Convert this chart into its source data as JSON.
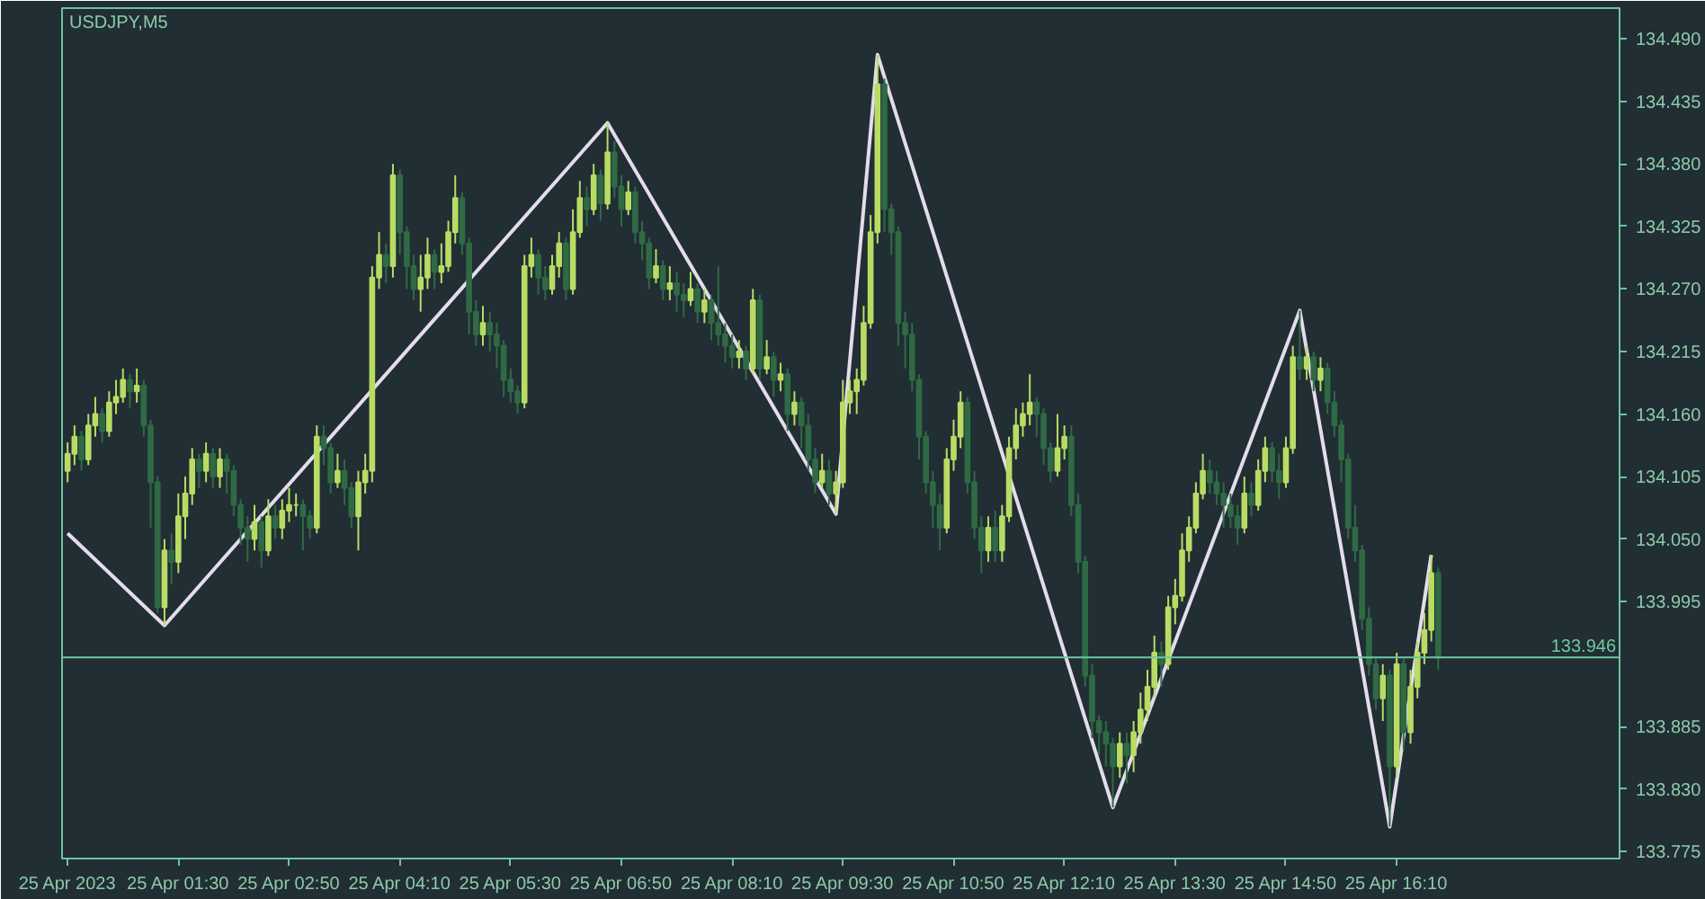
{
  "chart_data": {
    "type": "candlestick",
    "title": "USDJPY,M5",
    "x": [
      "2023-04-25T00:10",
      "2023-04-25T00:15",
      "2023-04-25T00:20",
      "2023-04-25T00:25",
      "2023-04-25T00:30",
      "2023-04-25T00:35",
      "2023-04-25T00:40",
      "2023-04-25T00:45",
      "2023-04-25T00:50",
      "2023-04-25T00:55",
      "2023-04-25T01:00",
      "2023-04-25T01:05",
      "2023-04-25T01:10",
      "2023-04-25T01:15",
      "2023-04-25T01:20",
      "2023-04-25T01:25",
      "2023-04-25T01:30",
      "2023-04-25T01:35",
      "2023-04-25T01:40",
      "2023-04-25T01:45",
      "2023-04-25T01:50",
      "2023-04-25T01:55",
      "2023-04-25T02:00",
      "2023-04-25T02:05",
      "2023-04-25T02:10",
      "2023-04-25T02:15",
      "2023-04-25T02:20",
      "2023-04-25T02:25",
      "2023-04-25T02:30",
      "2023-04-25T02:35",
      "2023-04-25T02:40",
      "2023-04-25T02:45",
      "2023-04-25T02:50",
      "2023-04-25T02:55",
      "2023-04-25T03:00",
      "2023-04-25T03:05",
      "2023-04-25T03:10",
      "2023-04-25T03:15",
      "2023-04-25T03:20",
      "2023-04-25T03:25",
      "2023-04-25T03:30",
      "2023-04-25T03:35",
      "2023-04-25T03:40",
      "2023-04-25T03:45",
      "2023-04-25T03:50",
      "2023-04-25T03:55",
      "2023-04-25T04:00",
      "2023-04-25T04:05",
      "2023-04-25T04:10",
      "2023-04-25T04:15",
      "2023-04-25T04:20",
      "2023-04-25T04:25",
      "2023-04-25T04:30",
      "2023-04-25T04:35",
      "2023-04-25T04:40",
      "2023-04-25T04:45",
      "2023-04-25T04:50",
      "2023-04-25T04:55",
      "2023-04-25T05:00",
      "2023-04-25T05:05",
      "2023-04-25T05:10",
      "2023-04-25T05:15",
      "2023-04-25T05:20",
      "2023-04-25T05:25",
      "2023-04-25T05:30",
      "2023-04-25T05:35",
      "2023-04-25T05:40",
      "2023-04-25T05:45",
      "2023-04-25T05:50",
      "2023-04-25T05:55",
      "2023-04-25T06:00",
      "2023-04-25T06:05",
      "2023-04-25T06:10",
      "2023-04-25T06:15",
      "2023-04-25T06:20",
      "2023-04-25T06:25",
      "2023-04-25T06:30",
      "2023-04-25T06:35",
      "2023-04-25T06:40",
      "2023-04-25T06:45",
      "2023-04-25T06:50",
      "2023-04-25T06:55",
      "2023-04-25T07:00",
      "2023-04-25T07:05",
      "2023-04-25T07:10",
      "2023-04-25T07:15",
      "2023-04-25T07:20",
      "2023-04-25T07:25",
      "2023-04-25T07:30",
      "2023-04-25T07:35",
      "2023-04-25T07:40",
      "2023-04-25T07:45",
      "2023-04-25T07:50",
      "2023-04-25T07:55",
      "2023-04-25T08:00",
      "2023-04-25T08:05",
      "2023-04-25T08:10",
      "2023-04-25T08:15",
      "2023-04-25T08:20",
      "2023-04-25T08:25",
      "2023-04-25T08:30",
      "2023-04-25T08:35",
      "2023-04-25T08:40",
      "2023-04-25T08:45",
      "2023-04-25T08:50",
      "2023-04-25T08:55",
      "2023-04-25T09:00",
      "2023-04-25T09:05",
      "2023-04-25T09:10",
      "2023-04-25T09:15",
      "2023-04-25T09:20",
      "2023-04-25T09:25",
      "2023-04-25T09:30",
      "2023-04-25T09:35",
      "2023-04-25T09:40",
      "2023-04-25T09:45",
      "2023-04-25T09:50",
      "2023-04-25T09:55",
      "2023-04-25T10:00",
      "2023-04-25T10:05",
      "2023-04-25T10:10",
      "2023-04-25T10:15",
      "2023-04-25T10:20",
      "2023-04-25T10:25",
      "2023-04-25T10:30",
      "2023-04-25T10:35",
      "2023-04-25T10:40",
      "2023-04-25T10:45",
      "2023-04-25T10:50",
      "2023-04-25T10:55",
      "2023-04-25T11:00",
      "2023-04-25T11:05",
      "2023-04-25T11:10",
      "2023-04-25T11:15",
      "2023-04-25T11:20",
      "2023-04-25T11:25",
      "2023-04-25T11:30",
      "2023-04-25T11:35",
      "2023-04-25T11:40",
      "2023-04-25T11:45",
      "2023-04-25T11:50",
      "2023-04-25T11:55",
      "2023-04-25T12:00",
      "2023-04-25T12:05",
      "2023-04-25T12:10",
      "2023-04-25T12:15",
      "2023-04-25T12:20",
      "2023-04-25T12:25",
      "2023-04-25T12:30",
      "2023-04-25T12:35",
      "2023-04-25T12:40",
      "2023-04-25T12:45",
      "2023-04-25T12:50",
      "2023-04-25T12:55",
      "2023-04-25T13:00",
      "2023-04-25T13:05",
      "2023-04-25T13:10",
      "2023-04-25T13:15",
      "2023-04-25T13:20",
      "2023-04-25T13:25",
      "2023-04-25T13:30",
      "2023-04-25T13:35",
      "2023-04-25T13:40",
      "2023-04-25T13:45",
      "2023-04-25T13:50",
      "2023-04-25T13:55",
      "2023-04-25T14:00",
      "2023-04-25T14:05",
      "2023-04-25T14:10",
      "2023-04-25T14:15",
      "2023-04-25T14:20",
      "2023-04-25T14:25",
      "2023-04-25T14:30",
      "2023-04-25T14:35",
      "2023-04-25T14:40",
      "2023-04-25T14:45",
      "2023-04-25T14:50",
      "2023-04-25T14:55",
      "2023-04-25T15:00",
      "2023-04-25T15:05",
      "2023-04-25T15:10",
      "2023-04-25T15:15",
      "2023-04-25T15:20",
      "2023-04-25T15:25",
      "2023-04-25T15:30",
      "2023-04-25T15:35",
      "2023-04-25T15:40",
      "2023-04-25T15:45",
      "2023-04-25T15:50",
      "2023-04-25T15:55",
      "2023-04-25T16:00",
      "2023-04-25T16:05",
      "2023-04-25T16:10",
      "2023-04-25T16:15",
      "2023-04-25T16:20",
      "2023-04-25T16:25",
      "2023-04-25T16:30",
      "2023-04-25T16:35",
      "2023-04-25T16:40"
    ],
    "ohlc": [
      [
        134.11,
        134.135,
        134.1,
        134.125
      ],
      [
        134.125,
        134.15,
        134.115,
        134.14
      ],
      [
        134.14,
        134.145,
        134.11,
        134.12
      ],
      [
        134.12,
        134.16,
        134.115,
        134.15
      ],
      [
        134.15,
        134.175,
        134.14,
        134.16
      ],
      [
        134.16,
        134.165,
        134.135,
        134.145
      ],
      [
        134.145,
        134.18,
        134.14,
        134.17
      ],
      [
        134.17,
        134.19,
        134.16,
        134.175
      ],
      [
        134.175,
        134.2,
        134.17,
        134.19
      ],
      [
        134.19,
        134.195,
        134.165,
        134.18
      ],
      [
        134.18,
        134.2,
        134.17,
        134.185
      ],
      [
        134.185,
        134.19,
        134.14,
        134.15
      ],
      [
        134.15,
        134.155,
        134.06,
        134.1
      ],
      [
        134.1,
        134.105,
        133.985,
        133.99
      ],
      [
        133.99,
        134.05,
        133.974,
        134.04
      ],
      [
        134.04,
        134.055,
        134.01,
        134.03
      ],
      [
        134.03,
        134.09,
        134.02,
        134.07
      ],
      [
        134.07,
        134.105,
        134.05,
        134.09
      ],
      [
        134.09,
        134.13,
        134.08,
        134.12
      ],
      [
        134.12,
        134.125,
        134.095,
        134.11
      ],
      [
        134.11,
        134.135,
        134.1,
        134.125
      ],
      [
        134.125,
        134.13,
        134.095,
        134.105
      ],
      [
        134.105,
        134.13,
        134.095,
        134.12
      ],
      [
        134.12,
        134.125,
        134.09,
        134.11
      ],
      [
        134.11,
        134.115,
        134.07,
        134.08
      ],
      [
        134.08,
        134.085,
        134.045,
        134.06
      ],
      [
        134.06,
        134.07,
        134.03,
        134.05
      ],
      [
        134.05,
        134.08,
        134.04,
        134.065
      ],
      [
        134.065,
        134.07,
        134.025,
        134.04
      ],
      [
        134.04,
        134.085,
        134.035,
        134.07
      ],
      [
        134.07,
        134.08,
        134.05,
        134.06
      ],
      [
        134.06,
        134.085,
        134.05,
        134.075
      ],
      [
        134.075,
        134.095,
        134.065,
        134.08
      ],
      [
        134.08,
        134.09,
        134.07,
        134.08
      ],
      [
        134.08,
        134.085,
        134.04,
        134.07
      ],
      [
        134.07,
        134.075,
        134.05,
        134.06
      ],
      [
        134.06,
        134.15,
        134.055,
        134.14
      ],
      [
        134.14,
        134.15,
        134.115,
        134.13
      ],
      [
        134.13,
        134.135,
        134.09,
        134.1
      ],
      [
        134.1,
        134.125,
        134.095,
        134.11
      ],
      [
        134.11,
        134.12,
        134.08,
        134.095
      ],
      [
        134.095,
        134.1,
        134.06,
        134.07
      ],
      [
        134.07,
        134.11,
        134.04,
        134.1
      ],
      [
        134.1,
        134.125,
        134.09,
        134.11
      ],
      [
        134.11,
        134.29,
        134.1,
        134.28
      ],
      [
        134.28,
        134.32,
        134.27,
        134.3
      ],
      [
        134.3,
        134.31,
        134.275,
        134.29
      ],
      [
        134.29,
        134.38,
        134.28,
        134.37
      ],
      [
        134.37,
        134.375,
        134.3,
        134.32
      ],
      [
        134.32,
        134.325,
        134.27,
        134.29
      ],
      [
        134.29,
        134.3,
        134.26,
        134.27
      ],
      [
        134.27,
        134.3,
        134.25,
        134.28
      ],
      [
        134.28,
        134.315,
        134.27,
        134.3
      ],
      [
        134.3,
        134.305,
        134.27,
        134.285
      ],
      [
        134.285,
        134.31,
        134.275,
        134.29
      ],
      [
        134.29,
        134.33,
        134.285,
        134.32
      ],
      [
        134.32,
        134.37,
        134.31,
        134.35
      ],
      [
        134.35,
        134.355,
        134.3,
        134.31
      ],
      [
        134.31,
        134.315,
        134.23,
        134.25
      ],
      [
        134.25,
        134.26,
        134.22,
        134.23
      ],
      [
        134.23,
        134.255,
        134.22,
        134.24
      ],
      [
        134.24,
        134.25,
        134.215,
        134.23
      ],
      [
        134.23,
        134.24,
        134.2,
        134.22
      ],
      [
        134.22,
        134.225,
        134.175,
        134.19
      ],
      [
        134.19,
        134.2,
        134.17,
        134.18
      ],
      [
        134.18,
        134.185,
        134.16,
        134.17
      ],
      [
        134.17,
        134.3,
        134.165,
        134.29
      ],
      [
        134.29,
        134.315,
        134.28,
        134.3
      ],
      [
        134.3,
        134.305,
        134.265,
        134.28
      ],
      [
        134.28,
        134.29,
        134.26,
        134.27
      ],
      [
        134.27,
        134.3,
        134.265,
        134.29
      ],
      [
        134.29,
        134.32,
        134.28,
        134.31
      ],
      [
        134.31,
        134.315,
        134.26,
        134.27
      ],
      [
        134.27,
        134.34,
        134.265,
        134.32
      ],
      [
        134.32,
        134.365,
        134.315,
        134.35
      ],
      [
        134.35,
        134.36,
        134.325,
        134.34
      ],
      [
        134.34,
        134.38,
        134.335,
        134.37
      ],
      [
        134.37,
        134.375,
        134.33,
        134.345
      ],
      [
        134.345,
        134.416,
        134.34,
        134.39
      ],
      [
        134.39,
        134.4,
        134.35,
        134.36
      ],
      [
        134.36,
        134.37,
        134.325,
        134.34
      ],
      [
        134.34,
        134.365,
        134.335,
        134.355
      ],
      [
        134.355,
        134.36,
        134.31,
        134.32
      ],
      [
        134.32,
        134.33,
        134.295,
        134.31
      ],
      [
        134.31,
        134.315,
        134.27,
        134.28
      ],
      [
        134.28,
        134.305,
        134.275,
        134.29
      ],
      [
        134.29,
        134.295,
        134.26,
        134.27
      ],
      [
        134.27,
        134.29,
        134.26,
        134.275
      ],
      [
        134.275,
        134.285,
        134.25,
        134.265
      ],
      [
        134.265,
        134.275,
        134.245,
        134.26
      ],
      [
        134.26,
        134.285,
        134.255,
        134.27
      ],
      [
        134.27,
        134.275,
        134.24,
        134.25
      ],
      [
        134.25,
        134.27,
        134.24,
        134.26
      ],
      [
        134.26,
        134.265,
        134.225,
        134.24
      ],
      [
        134.24,
        134.29,
        134.22,
        134.23
      ],
      [
        134.23,
        134.24,
        134.205,
        134.22
      ],
      [
        134.22,
        134.23,
        134.2,
        134.21
      ],
      [
        134.21,
        134.225,
        134.2,
        134.215
      ],
      [
        134.215,
        134.22,
        134.19,
        134.2
      ],
      [
        134.2,
        134.27,
        134.195,
        134.26
      ],
      [
        134.26,
        134.265,
        134.19,
        134.2
      ],
      [
        134.2,
        134.225,
        134.195,
        134.21
      ],
      [
        134.21,
        134.215,
        134.175,
        134.19
      ],
      [
        134.19,
        134.205,
        134.18,
        134.195
      ],
      [
        134.195,
        134.2,
        134.145,
        134.16
      ],
      [
        134.16,
        134.18,
        134.15,
        134.17
      ],
      [
        134.17,
        134.175,
        134.13,
        134.15
      ],
      [
        134.15,
        134.16,
        134.11,
        134.12
      ],
      [
        134.12,
        134.13,
        134.09,
        134.1
      ],
      [
        134.1,
        134.125,
        134.095,
        134.11
      ],
      [
        134.11,
        134.12,
        134.08,
        134.09
      ],
      [
        134.09,
        134.11,
        134.072,
        134.1
      ],
      [
        134.1,
        134.19,
        134.095,
        134.17
      ],
      [
        134.17,
        134.19,
        134.16,
        134.18
      ],
      [
        134.18,
        134.2,
        134.16,
        134.19
      ],
      [
        134.19,
        134.255,
        134.185,
        134.24
      ],
      [
        134.24,
        134.335,
        134.235,
        134.32
      ],
      [
        134.32,
        134.476,
        134.31,
        134.45
      ],
      [
        134.45,
        134.455,
        134.32,
        134.34
      ],
      [
        134.34,
        134.345,
        134.3,
        134.32
      ],
      [
        134.32,
        134.325,
        134.22,
        134.24
      ],
      [
        134.24,
        134.25,
        134.2,
        134.23
      ],
      [
        134.23,
        134.24,
        134.18,
        134.19
      ],
      [
        134.19,
        134.195,
        134.12,
        134.14
      ],
      [
        134.14,
        134.145,
        134.09,
        134.1
      ],
      [
        134.1,
        134.11,
        134.06,
        134.08
      ],
      [
        134.08,
        134.09,
        134.04,
        134.06
      ],
      [
        134.06,
        134.13,
        134.055,
        134.12
      ],
      [
        134.12,
        134.155,
        134.11,
        134.14
      ],
      [
        134.14,
        134.18,
        134.13,
        134.17
      ],
      [
        134.17,
        134.175,
        134.09,
        134.1
      ],
      [
        134.1,
        134.11,
        134.05,
        134.06
      ],
      [
        134.06,
        134.07,
        134.02,
        134.04
      ],
      [
        134.04,
        134.07,
        134.03,
        134.06
      ],
      [
        134.06,
        134.075,
        134.03,
        134.04
      ],
      [
        134.04,
        134.08,
        134.03,
        134.07
      ],
      [
        134.07,
        134.14,
        134.065,
        134.13
      ],
      [
        134.13,
        134.165,
        134.12,
        134.15
      ],
      [
        134.15,
        134.17,
        134.14,
        134.16
      ],
      [
        134.16,
        134.195,
        134.15,
        134.17
      ],
      [
        134.17,
        134.175,
        134.14,
        134.16
      ],
      [
        134.16,
        134.165,
        134.115,
        134.13
      ],
      [
        134.13,
        134.135,
        134.1,
        134.11
      ],
      [
        134.11,
        134.16,
        134.105,
        134.13
      ],
      [
        134.13,
        134.15,
        134.12,
        134.14
      ],
      [
        134.14,
        134.15,
        134.07,
        134.08
      ],
      [
        134.08,
        134.09,
        134.02,
        134.03
      ],
      [
        134.03,
        134.035,
        133.92,
        133.93
      ],
      [
        133.93,
        133.94,
        133.875,
        133.89
      ],
      [
        133.89,
        133.895,
        133.86,
        133.88
      ],
      [
        133.88,
        133.89,
        133.85,
        133.87
      ],
      [
        133.87,
        133.875,
        133.814,
        133.85
      ],
      [
        133.85,
        133.88,
        133.84,
        133.87
      ],
      [
        133.87,
        133.88,
        133.835,
        133.86
      ],
      [
        133.86,
        133.89,
        133.845,
        133.88
      ],
      [
        133.88,
        133.915,
        133.87,
        133.9
      ],
      [
        133.9,
        133.935,
        133.89,
        133.92
      ],
      [
        133.92,
        133.965,
        133.91,
        133.95
      ],
      [
        133.95,
        133.96,
        133.92,
        133.94
      ],
      [
        133.94,
        134.0,
        133.935,
        133.99
      ],
      [
        133.99,
        134.015,
        133.975,
        134.0
      ],
      [
        134.0,
        134.055,
        133.995,
        134.04
      ],
      [
        134.04,
        134.07,
        134.03,
        134.06
      ],
      [
        134.06,
        134.1,
        134.055,
        134.09
      ],
      [
        134.09,
        134.125,
        134.085,
        134.11
      ],
      [
        134.11,
        134.12,
        134.09,
        134.1
      ],
      [
        134.1,
        134.11,
        134.08,
        134.09
      ],
      [
        134.09,
        134.1,
        134.06,
        134.08
      ],
      [
        134.08,
        134.09,
        134.06,
        134.07
      ],
      [
        134.07,
        134.08,
        134.045,
        134.06
      ],
      [
        134.06,
        134.105,
        134.055,
        134.09
      ],
      [
        134.09,
        134.1,
        134.07,
        134.08
      ],
      [
        134.08,
        134.12,
        134.075,
        134.11
      ],
      [
        134.11,
        134.14,
        134.1,
        134.13
      ],
      [
        134.13,
        134.135,
        134.1,
        134.11
      ],
      [
        134.11,
        134.125,
        134.085,
        134.1
      ],
      [
        134.1,
        134.14,
        134.095,
        134.13
      ],
      [
        134.13,
        134.22,
        134.125,
        134.21
      ],
      [
        134.21,
        134.251,
        134.19,
        134.2
      ],
      [
        134.2,
        134.22,
        134.19,
        134.21
      ],
      [
        134.21,
        134.215,
        134.18,
        134.19
      ],
      [
        134.19,
        134.21,
        134.18,
        134.2
      ],
      [
        134.2,
        134.205,
        134.16,
        134.17
      ],
      [
        134.17,
        134.18,
        134.14,
        134.15
      ],
      [
        134.15,
        134.155,
        134.1,
        134.12
      ],
      [
        134.12,
        134.125,
        134.05,
        134.06
      ],
      [
        134.06,
        134.08,
        134.03,
        134.04
      ],
      [
        134.04,
        134.045,
        133.97,
        133.98
      ],
      [
        133.98,
        133.99,
        133.93,
        133.94
      ],
      [
        133.94,
        133.945,
        133.9,
        133.91
      ],
      [
        133.91,
        133.94,
        133.89,
        133.93
      ],
      [
        133.93,
        133.935,
        133.797,
        133.85
      ],
      [
        133.85,
        133.95,
        133.84,
        133.94
      ],
      [
        133.94,
        133.945,
        133.865,
        133.88
      ],
      [
        133.88,
        133.935,
        133.87,
        133.92
      ],
      [
        133.92,
        133.96,
        133.91,
        133.95
      ],
      [
        133.95,
        133.985,
        133.94,
        133.97
      ],
      [
        133.97,
        134.036,
        133.96,
        134.02
      ],
      [
        134.02,
        134.025,
        133.935,
        133.946
      ]
    ],
    "colors": [
      "#b8dc64",
      "#b8dc64",
      "#2f6a45",
      "#b8dc64",
      "#b8dc64",
      "#2f6a45",
      "#b8dc64",
      "#b8dc64",
      "#b8dc64",
      "#2f6a45",
      "#b8dc64",
      "#2f6a45",
      "#2f6a45",
      "#2f6a45",
      "#b8dc64",
      "#2f6a45",
      "#b8dc64",
      "#b8dc64",
      "#b8dc64",
      "#2f6a45",
      "#b8dc64",
      "#2f6a45",
      "#b8dc64",
      "#2f6a45",
      "#2f6a45",
      "#2f6a45",
      "#2f6a45",
      "#b8dc64",
      "#2f6a45",
      "#b8dc64",
      "#2f6a45",
      "#b8dc64",
      "#b8dc64",
      "#b8dc64",
      "#2f6a45",
      "#2f6a45",
      "#b8dc64",
      "#2f6a45",
      "#2f6a45",
      "#b8dc64",
      "#2f6a45",
      "#2f6a45",
      "#b8dc64",
      "#b8dc64",
      "#b8dc64",
      "#b8dc64",
      "#2f6a45",
      "#b8dc64",
      "#2f6a45",
      "#2f6a45",
      "#2f6a45",
      "#b8dc64",
      "#b8dc64",
      "#2f6a45",
      "#b8dc64",
      "#b8dc64",
      "#b8dc64",
      "#2f6a45",
      "#2f6a45",
      "#2f6a45",
      "#b8dc64",
      "#2f6a45",
      "#2f6a45",
      "#2f6a45",
      "#2f6a45",
      "#2f6a45",
      "#b8dc64",
      "#b8dc64",
      "#2f6a45",
      "#2f6a45",
      "#b8dc64",
      "#b8dc64",
      "#2f6a45",
      "#b8dc64",
      "#b8dc64",
      "#2f6a45",
      "#b8dc64",
      "#2f6a45",
      "#b8dc64",
      "#2f6a45",
      "#2f6a45",
      "#b8dc64",
      "#2f6a45",
      "#2f6a45",
      "#2f6a45",
      "#b8dc64",
      "#2f6a45",
      "#b8dc64",
      "#2f6a45",
      "#2f6a45",
      "#b8dc64",
      "#2f6a45",
      "#b8dc64",
      "#2f6a45",
      "#2f6a45",
      "#2f6a45",
      "#2f6a45",
      "#b8dc64",
      "#2f6a45",
      "#b8dc64",
      "#2f6a45",
      "#b8dc64",
      "#2f6a45",
      "#b8dc64",
      "#2f6a45",
      "#b8dc64",
      "#2f6a45",
      "#2f6a45",
      "#2f6a45",
      "#b8dc64",
      "#2f6a45",
      "#b8dc64",
      "#b8dc64",
      "#b8dc64",
      "#b8dc64",
      "#b8dc64",
      "#b8dc64",
      "#b8dc64",
      "#2f6a45",
      "#2f6a45",
      "#2f6a45",
      "#2f6a45",
      "#2f6a45",
      "#2f6a45",
      "#2f6a45",
      "#2f6a45",
      "#2f6a45",
      "#b8dc64",
      "#b8dc64",
      "#b8dc64",
      "#2f6a45",
      "#2f6a45",
      "#2f6a45",
      "#b8dc64",
      "#2f6a45",
      "#b8dc64",
      "#b8dc64",
      "#b8dc64",
      "#b8dc64",
      "#b8dc64",
      "#2f6a45",
      "#2f6a45",
      "#2f6a45",
      "#b8dc64",
      "#b8dc64",
      "#2f6a45",
      "#2f6a45",
      "#2f6a45",
      "#2f6a45",
      "#2f6a45",
      "#2f6a45",
      "#2f6a45",
      "#b8dc64",
      "#2f6a45",
      "#b8dc64",
      "#b8dc64",
      "#b8dc64",
      "#b8dc64",
      "#2f6a45",
      "#b8dc64",
      "#b8dc64",
      "#b8dc64",
      "#b8dc64",
      "#b8dc64",
      "#b8dc64",
      "#2f6a45",
      "#2f6a45",
      "#2f6a45",
      "#2f6a45",
      "#2f6a45",
      "#b8dc64",
      "#2f6a45",
      "#b8dc64",
      "#b8dc64",
      "#2f6a45",
      "#2f6a45",
      "#b8dc64",
      "#b8dc64",
      "#2f6a45",
      "#b8dc64",
      "#2f6a45",
      "#b8dc64",
      "#2f6a45",
      "#2f6a45",
      "#2f6a45",
      "#2f6a45",
      "#2f6a45",
      "#2f6a45",
      "#2f6a45",
      "#2f6a45",
      "#b8dc64",
      "#2f6a45",
      "#b8dc64",
      "#2f6a45",
      "#b8dc64",
      "#b8dc64",
      "#b8dc64",
      "#b8dc64",
      "#2f6a45"
    ],
    "series": [
      {
        "type": "line",
        "color": "#e4dcec",
        "x": [
          "2023-04-25T00:10",
          "2023-04-25T01:20",
          "2023-04-25T06:40",
          "2023-04-25T09:25",
          "2023-04-25T09:55",
          "2023-04-25T12:45",
          "2023-04-25T15:00",
          "2023-04-25T16:05",
          "2023-04-25T16:35"
        ],
        "values": [
          134.055,
          133.974,
          134.416,
          134.072,
          134.476,
          133.814,
          134.251,
          133.797,
          134.036
        ]
      }
    ],
    "ref_lines": [
      {
        "axis": "y",
        "value": 133.946,
        "label": "133.946",
        "color": "#6fc7a0"
      }
    ],
    "xlim": [
      "2023-04-25T00:06",
      "2023-04-25T18:51"
    ],
    "xticks": [
      {
        "value": "2023-04-25T00:10",
        "label": "25 Apr 2023"
      },
      {
        "value": "2023-04-25T01:30",
        "label": "25 Apr 01:30"
      },
      {
        "value": "2023-04-25T02:50",
        "label": "25 Apr 02:50"
      },
      {
        "value": "2023-04-25T04:10",
        "label": "25 Apr 04:10"
      },
      {
        "value": "2023-04-25T05:30",
        "label": "25 Apr 05:30"
      },
      {
        "value": "2023-04-25T06:50",
        "label": "25 Apr 06:50"
      },
      {
        "value": "2023-04-25T08:10",
        "label": "25 Apr 08:10"
      },
      {
        "value": "2023-04-25T09:30",
        "label": "25 Apr 09:30"
      },
      {
        "value": "2023-04-25T10:50",
        "label": "25 Apr 10:50"
      },
      {
        "value": "2023-04-25T12:10",
        "label": "25 Apr 12:10"
      },
      {
        "value": "2023-04-25T13:30",
        "label": "25 Apr 13:30"
      },
      {
        "value": "2023-04-25T14:50",
        "label": "25 Apr 14:50"
      },
      {
        "value": "2023-04-25T16:10",
        "label": "25 Apr 16:10"
      }
    ],
    "ylim": [
      133.769,
      134.517
    ],
    "yticks": [
      {
        "value": 133.775,
        "label": "133.775"
      },
      {
        "value": 133.83,
        "label": "133.830"
      },
      {
        "value": 133.885,
        "label": "133.885"
      },
      {
        "value": 133.995,
        "label": "133.995"
      },
      {
        "value": 134.05,
        "label": "134.050"
      },
      {
        "value": 134.105,
        "label": "134.105"
      },
      {
        "value": 134.16,
        "label": "134.160"
      },
      {
        "value": 134.215,
        "label": "134.215"
      },
      {
        "value": 134.27,
        "label": "134.270"
      },
      {
        "value": 134.325,
        "label": "134.325"
      },
      {
        "value": 134.38,
        "label": "134.380"
      },
      {
        "value": 134.435,
        "label": "134.435"
      },
      {
        "value": 134.49,
        "label": "134.490"
      }
    ]
  }
}
